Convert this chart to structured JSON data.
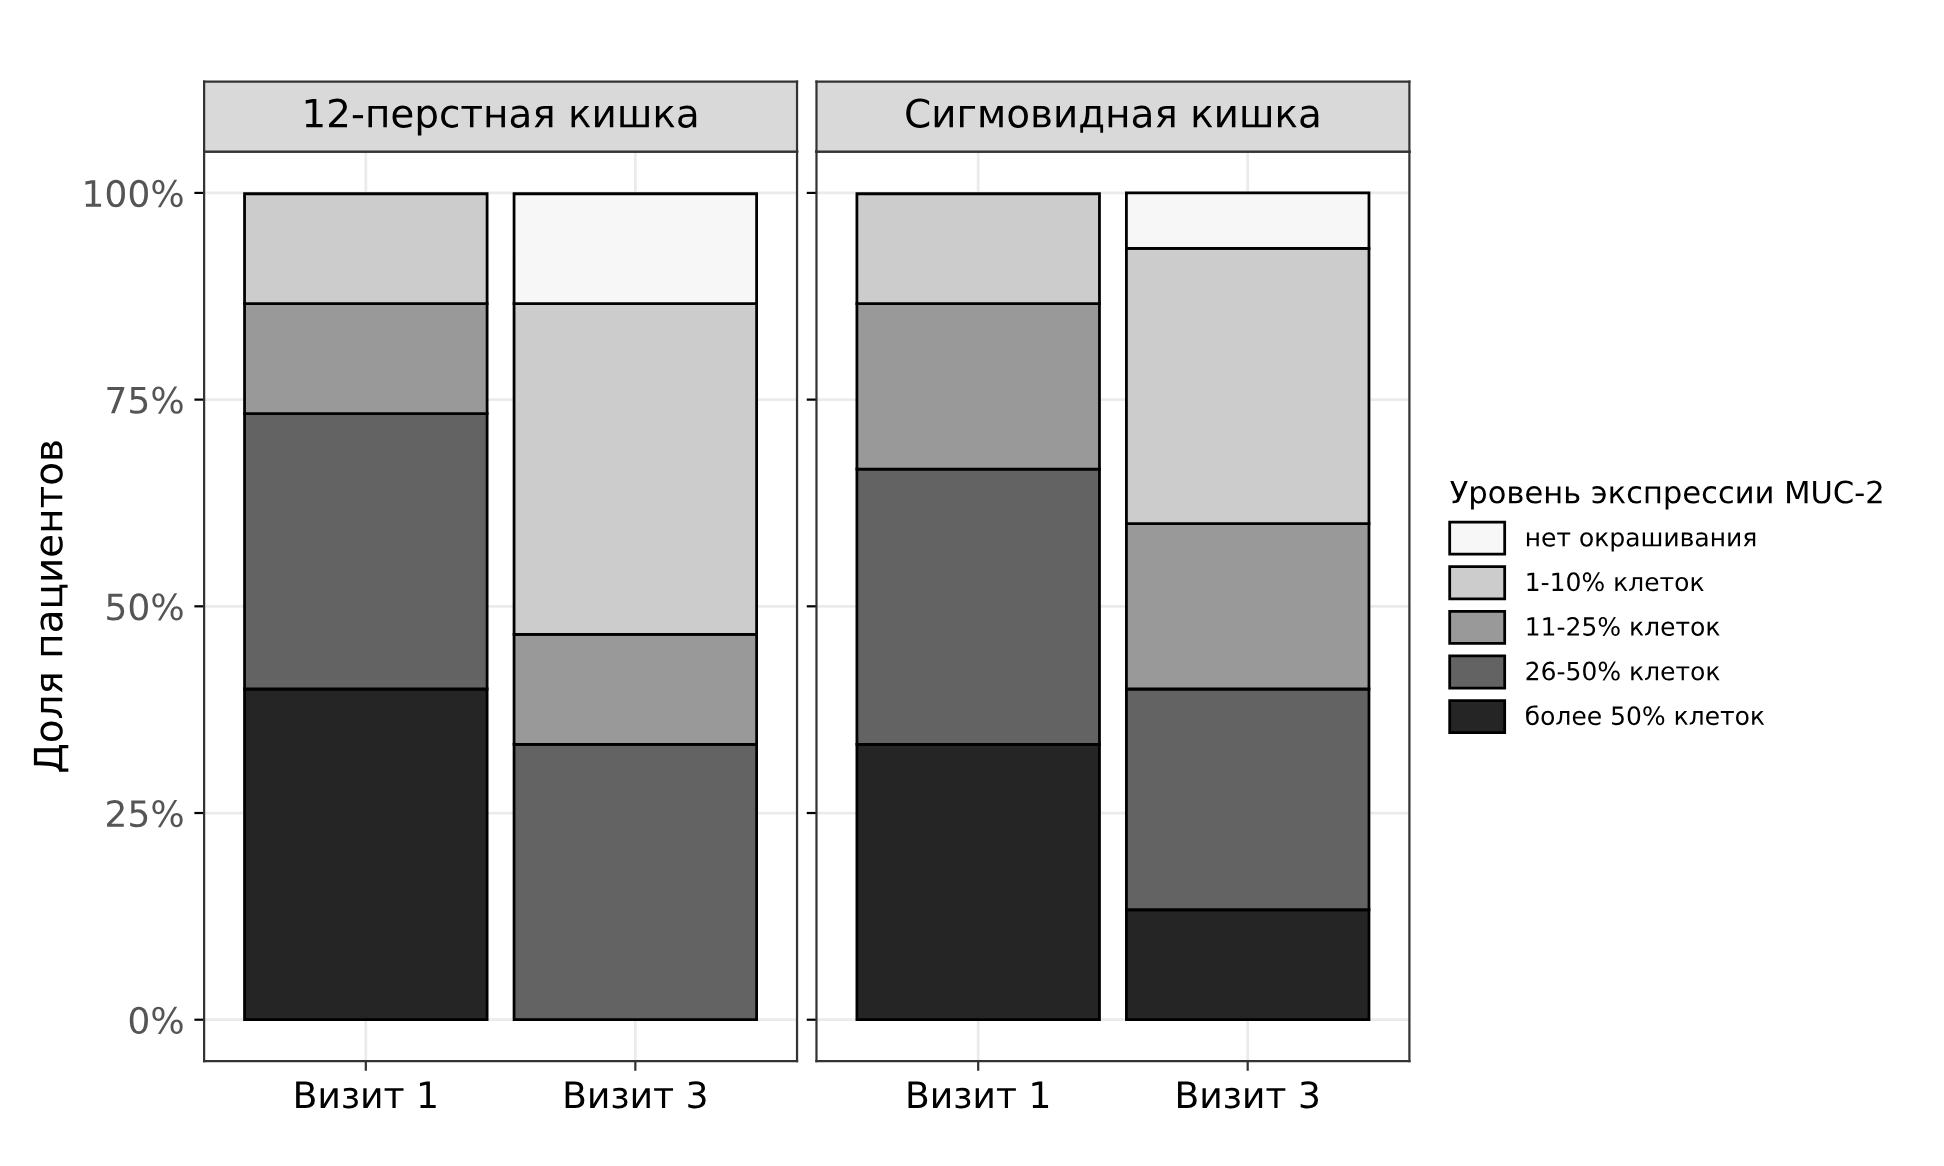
{
  "chart_data": [
    {
      "type": "bar",
      "stacked": true,
      "title": "12-перстная кишка",
      "ylabel": "Доля пациентов",
      "categories": [
        "Визит 1",
        "Визит 3"
      ],
      "series": [
        {
          "color": "#252525",
          "values": [
            40,
            0
          ]
        },
        {
          "color": "#636363",
          "values": [
            33.3,
            33.3
          ]
        },
        {
          "color": "#999999",
          "values": [
            13.3,
            13.3
          ]
        },
        {
          "color": "#cccccc",
          "values": [
            13.3,
            40
          ]
        },
        {
          "color": "#f7f7f7",
          "values": [
            0,
            13.3
          ]
        }
      ],
      "ylim": [
        -5,
        105
      ],
      "yticks": [
        {
          "value": 0,
          "label": "0%"
        },
        {
          "value": 25,
          "label": "25%"
        },
        {
          "value": 50,
          "label": "50%"
        },
        {
          "value": 75,
          "label": "75%"
        },
        {
          "value": 100,
          "label": "100%"
        }
      ],
      "grid": true,
      "legend": false
    },
    {
      "type": "bar",
      "stacked": true,
      "title": "Сигмовидная кишка",
      "legend_title": "Уровень экспрессии MUC-2",
      "categories": [
        "Визит 1",
        "Визит 3"
      ],
      "series": [
        {
          "name": "более 50% клеток",
          "color": "#252525",
          "values": [
            33.3,
            13.3
          ]
        },
        {
          "name": "26-50% клеток",
          "color": "#636363",
          "values": [
            33.3,
            26.7
          ]
        },
        {
          "name": "11-25% клеток",
          "color": "#999999",
          "values": [
            20,
            20
          ]
        },
        {
          "name": "1-10% клеток",
          "color": "#cccccc",
          "values": [
            13.3,
            33.3
          ]
        },
        {
          "name": "нет окрашивания",
          "color": "#f7f7f7",
          "values": [
            0,
            6.7
          ]
        }
      ],
      "ylim": [
        -5,
        105
      ],
      "yticks": [
        {
          "value": 0,
          "label": null
        },
        {
          "value": 25,
          "label": null
        },
        {
          "value": 50,
          "label": null
        },
        {
          "value": 75,
          "label": null
        },
        {
          "value": 100,
          "label": null
        }
      ],
      "grid": true,
      "legend": "right",
      "tick_labels": "x"
    }
  ]
}
